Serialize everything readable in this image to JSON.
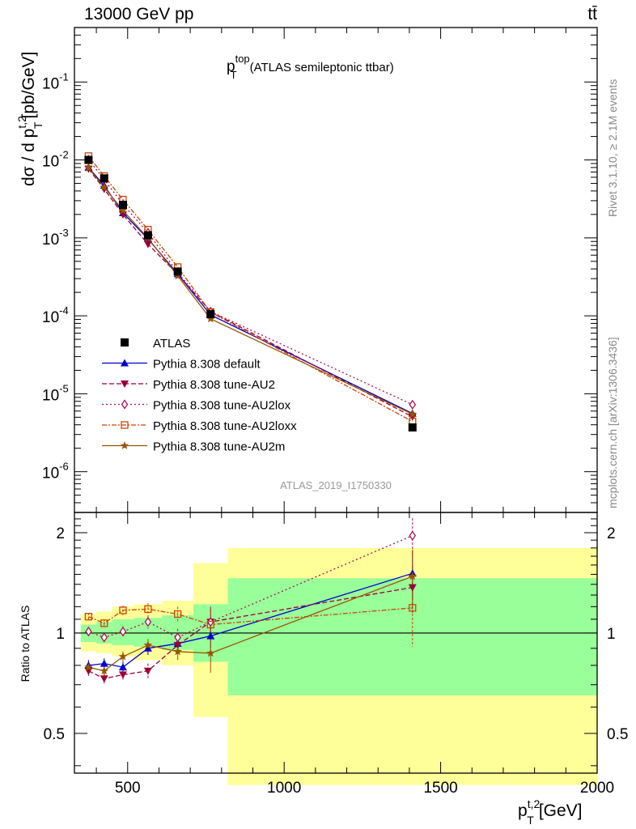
{
  "header": {
    "energy": "13000 GeV pp",
    "process": "tt̄"
  },
  "side_labels": {
    "rivet": "Rivet 3.1.10, ≥ 2.1M events",
    "mcplots": "mcplots.cern.ch [arXiv:1306.3436]"
  },
  "watermark": "ATLAS_2019_I1750330",
  "chart_data": {
    "type": "line",
    "title": "p_T^top (ATLAS semileptonic ttbar)",
    "ylabel": "dσ / d p_T^t,2 [pb/GeV]",
    "xlabel": "p_T^t,2 [GeV]",
    "ratio_ylabel": "Ratio to ATLAS",
    "xlim": [
      330,
      2000
    ],
    "ylim": [
      3e-07,
      0.5
    ],
    "ratio_ylim": [
      0.38,
      2.3
    ],
    "y_scale": "log",
    "ratio_scale": "log",
    "x_ticks": [
      500,
      1000,
      1500,
      2000
    ],
    "y_ticks": [
      {
        "v": 1e-06,
        "label": "10",
        "exp": "-6"
      },
      {
        "v": 1e-05,
        "label": "10",
        "exp": "-5"
      },
      {
        "v": 0.0001,
        "label": "10",
        "exp": "-4"
      },
      {
        "v": 0.001,
        "label": "10",
        "exp": "-3"
      },
      {
        "v": 0.01,
        "label": "10",
        "exp": "-2"
      },
      {
        "v": 0.1,
        "label": "10",
        "exp": "-1"
      }
    ],
    "ratio_ticks": [
      0.5,
      1,
      2
    ],
    "bins": [
      [
        350,
        400
      ],
      [
        400,
        450
      ],
      [
        450,
        520
      ],
      [
        520,
        610
      ],
      [
        610,
        710
      ],
      [
        710,
        820
      ],
      [
        820,
        2000
      ]
    ],
    "x": [
      375,
      425,
      485,
      565,
      660,
      765,
      1410
    ],
    "band_inner": [
      [
        0.94,
        1.06
      ],
      [
        0.93,
        1.08
      ],
      [
        0.92,
        1.1
      ],
      [
        0.91,
        1.11
      ],
      [
        0.89,
        1.13
      ],
      [
        0.82,
        1.22
      ],
      [
        0.65,
        1.46
      ]
    ],
    "band_outer": [
      [
        0.88,
        1.14
      ],
      [
        0.87,
        1.16
      ],
      [
        0.85,
        1.2
      ],
      [
        0.83,
        1.22
      ],
      [
        0.8,
        1.25
      ],
      [
        0.56,
        1.62
      ],
      [
        0.35,
        1.8
      ]
    ],
    "data": {
      "name": "ATLAS",
      "values": [
        0.01,
        0.0058,
        0.00265,
        0.00108,
        0.00037,
        0.000105,
        3.7e-06
      ]
    },
    "legend_position": "lower-left",
    "series": [
      {
        "name": "Pythia 8.308 default",
        "color": "#0000cc",
        "dash": "",
        "marker": "triangle-up",
        "ratio": [
          0.8,
          0.81,
          0.79,
          0.9,
          0.93,
          0.98,
          1.51
        ],
        "ratio_err": [
          0.03,
          0.03,
          0.03,
          0.04,
          0.05,
          0.08,
          0.25
        ]
      },
      {
        "name": "Pythia 8.308 tune-AU2",
        "color": "#990033",
        "dash": "6,3",
        "marker": "triangle-down",
        "ratio": [
          0.77,
          0.73,
          0.75,
          0.77,
          0.92,
          1.08,
          1.37
        ],
        "ratio_err": [
          0.03,
          0.03,
          0.03,
          0.04,
          0.05,
          0.1,
          0.22
        ]
      },
      {
        "name": "Pythia 8.308 tune-AU2lox",
        "color": "#aa1155",
        "dash": "2,3",
        "marker": "diamond-open",
        "ratio": [
          1.01,
          0.97,
          1.01,
          1.08,
          0.97,
          1.08,
          1.96
        ],
        "ratio_err": [
          0.03,
          0.03,
          0.04,
          0.05,
          0.06,
          0.12,
          0.25
        ]
      },
      {
        "name": "Pythia 8.308 tune-AU2loxx",
        "color": "#cc4400",
        "dash": "6,2,2,2",
        "marker": "square-open",
        "ratio": [
          1.12,
          1.07,
          1.17,
          1.18,
          1.14,
          1.06,
          1.19
        ],
        "ratio_err": [
          0.03,
          0.03,
          0.04,
          0.05,
          0.06,
          0.12,
          0.28
        ]
      },
      {
        "name": "Pythia 8.308 tune-AU2m",
        "color": "#995500",
        "dash": "",
        "marker": "star",
        "ratio": [
          0.79,
          0.77,
          0.85,
          0.92,
          0.88,
          0.87,
          1.48
        ],
        "ratio_err": [
          0.03,
          0.03,
          0.03,
          0.04,
          0.05,
          0.11,
          0.3
        ]
      }
    ]
  }
}
